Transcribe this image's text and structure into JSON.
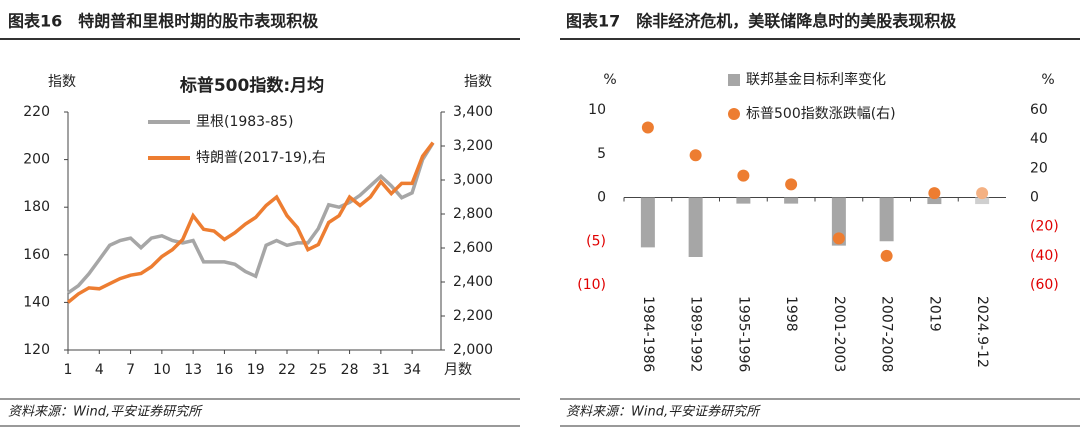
{
  "chart_data": [
    {
      "type": "line",
      "header": "图表16　特朗普和里根时期的股市表现积极",
      "title": "标普500指数:月均",
      "y_label": "指数",
      "y2_label": "指数",
      "x_label": "月数",
      "source": "资料来源：Wind,平安证券研究所",
      "x": [
        1,
        2,
        3,
        4,
        5,
        6,
        7,
        8,
        9,
        10,
        11,
        12,
        13,
        14,
        15,
        16,
        17,
        18,
        19,
        20,
        21,
        22,
        23,
        24,
        25,
        26,
        27,
        28,
        29,
        30,
        31,
        32,
        33,
        34,
        35,
        36
      ],
      "xlim": [
        1,
        36
      ],
      "xticks": [
        1,
        4,
        7,
        10,
        13,
        16,
        19,
        22,
        25,
        28,
        31,
        34
      ],
      "ylim": [
        120,
        220
      ],
      "yticks": [
        120,
        140,
        160,
        180,
        200,
        220
      ],
      "y2lim": [
        2000,
        3400
      ],
      "y2ticks": [
        {
          "value": 2000,
          "label": "2,000"
        },
        {
          "value": 2200,
          "label": "2,200"
        },
        {
          "value": 2400,
          "label": "2,400"
        },
        {
          "value": 2600,
          "label": "2,600"
        },
        {
          "value": 2800,
          "label": "2,800"
        },
        {
          "value": 3000,
          "label": "3,000"
        },
        {
          "value": 3200,
          "label": "3,200"
        },
        {
          "value": 3400,
          "label": "3,400"
        }
      ],
      "series": [
        {
          "name": "里根(1983-85)",
          "color": "#a6a6a6",
          "values": [
            144,
            147,
            152,
            158,
            164,
            166,
            167,
            163,
            167,
            168,
            166,
            165,
            166,
            157,
            157,
            157,
            156,
            153,
            151,
            164,
            166,
            164,
            165,
            165,
            171,
            181,
            180,
            182,
            185,
            189,
            193,
            189,
            184,
            186,
            200,
            207
          ]
        },
        {
          "name": "特朗普(2017-19),右",
          "color": "#ed7d31",
          "axis": "y2",
          "values": [
            2280,
            2330,
            2365,
            2360,
            2390,
            2420,
            2440,
            2450,
            2490,
            2550,
            2590,
            2650,
            2790,
            2710,
            2700,
            2650,
            2690,
            2740,
            2780,
            2850,
            2900,
            2790,
            2720,
            2590,
            2620,
            2750,
            2790,
            2900,
            2850,
            2900,
            2990,
            2920,
            2980,
            2980,
            3140,
            3220
          ]
        }
      ]
    },
    {
      "type": "bar_scatter",
      "header": "图表17　除非经济危机，美联储降息时的美股表现积极",
      "y_label": "%",
      "y2_label": "%",
      "source": "资料来源：Wind,平安证券研究所",
      "categories": [
        "1984-1986",
        "1989-1992",
        "1995-1996",
        "1998",
        "2001-2003",
        "2007-2008",
        "2019",
        "2024.9-12"
      ],
      "ylim": [
        -10,
        10
      ],
      "yticks": [
        {
          "value": -10,
          "label": "(10)"
        },
        {
          "value": -5,
          "label": "(5)"
        },
        0,
        5,
        10
      ],
      "y2lim": [
        -60,
        60
      ],
      "y2ticks": [
        {
          "value": -60,
          "label": "(60)"
        },
        {
          "value": -40,
          "label": "(40)"
        },
        {
          "value": -20,
          "label": "(20)"
        },
        0,
        20,
        40,
        60
      ],
      "negative_label_color": "#e00000",
      "series": [
        {
          "name": "联邦基金目标利率变化",
          "color": "#a6a6a6",
          "colors": [
            "#a6a6a6",
            "#a6a6a6",
            "#a6a6a6",
            "#a6a6a6",
            "#a6a6a6",
            "#a6a6a6",
            "#a6a6a6",
            "#cfcfcf"
          ],
          "values": [
            -5.7,
            -6.8,
            -0.7,
            -0.7,
            -5.5,
            -5,
            -0.75,
            -0.75
          ]
        },
        {
          "name": "标普500指数涨跌幅(右)",
          "color": "#ed7d31",
          "axis": "y2",
          "colors": [
            "#ed7d31",
            "#ed7d31",
            "#ed7d31",
            "#ed7d31",
            "#ed7d31",
            "#ed7d31",
            "#ed7d31",
            "#f4b183"
          ],
          "values": [
            48,
            29,
            15,
            9,
            -28,
            -40,
            3,
            3
          ]
        }
      ]
    }
  ]
}
